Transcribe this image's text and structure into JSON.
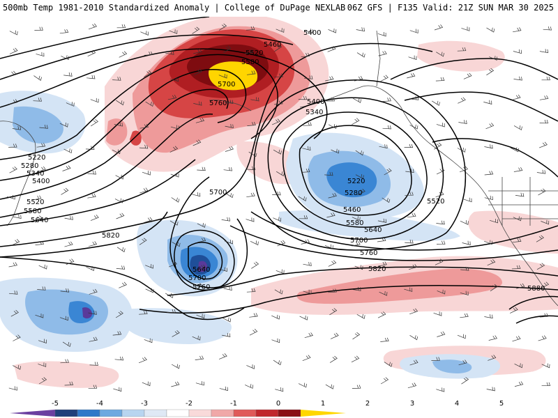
{
  "header": {
    "title_left": "500mb Temp 1981-2010 Standardized Anomaly | College of DuPage NEXLAB",
    "title_right": "06Z GFS | F135 Valid: 21Z SUN MAR 30 2025"
  },
  "colorbar": {
    "labels": [
      "-5",
      "-4",
      "-3",
      "-2",
      "-1",
      "0",
      "1",
      "2",
      "3",
      "4",
      "5"
    ],
    "colors": [
      "#6b3fa0",
      "#1f3f7a",
      "#2f78c8",
      "#6ea9e0",
      "#b8d5f0",
      "#dfe9f5",
      "#ffffff",
      "#f9dada",
      "#f0a8a8",
      "#e05a5a",
      "#c1272d",
      "#8b0f14",
      "#ffd700"
    ]
  },
  "map": {
    "anomaly_colors": {
      "warm_light": "#f8d6d6",
      "warm_mid": "#ee9a9a",
      "warm_strong": "#d64545",
      "warm_deep": "#b01e22",
      "warm_dark": "#7e0c10",
      "warm_peak": "#ffd500",
      "cold_light": "#d4e4f5",
      "cold_mid": "#8fbbe8",
      "cold_strong": "#3a86d4",
      "cold_deep": "#1f4f99",
      "cold_peak": "#5a3a9a"
    },
    "contour_labels": [
      {
        "text": "5400"
      },
      {
        "text": "5460"
      },
      {
        "text": "5520"
      },
      {
        "text": "5580"
      },
      {
        "text": "5700"
      },
      {
        "text": "5760"
      },
      {
        "text": "5400"
      },
      {
        "text": "5340"
      },
      {
        "text": "5220"
      },
      {
        "text": "5280"
      },
      {
        "text": "5340"
      },
      {
        "text": "5400"
      },
      {
        "text": "5520"
      },
      {
        "text": "5580"
      },
      {
        "text": "5640"
      },
      {
        "text": "5700"
      },
      {
        "text": "5820"
      },
      {
        "text": "5640"
      },
      {
        "text": "5700"
      },
      {
        "text": "5760"
      },
      {
        "text": "5220"
      },
      {
        "text": "5280"
      },
      {
        "text": "5460"
      },
      {
        "text": "5520"
      },
      {
        "text": "5580"
      },
      {
        "text": "5640"
      },
      {
        "text": "5700"
      },
      {
        "text": "5760"
      },
      {
        "text": "5820"
      },
      {
        "text": "5880"
      }
    ]
  }
}
